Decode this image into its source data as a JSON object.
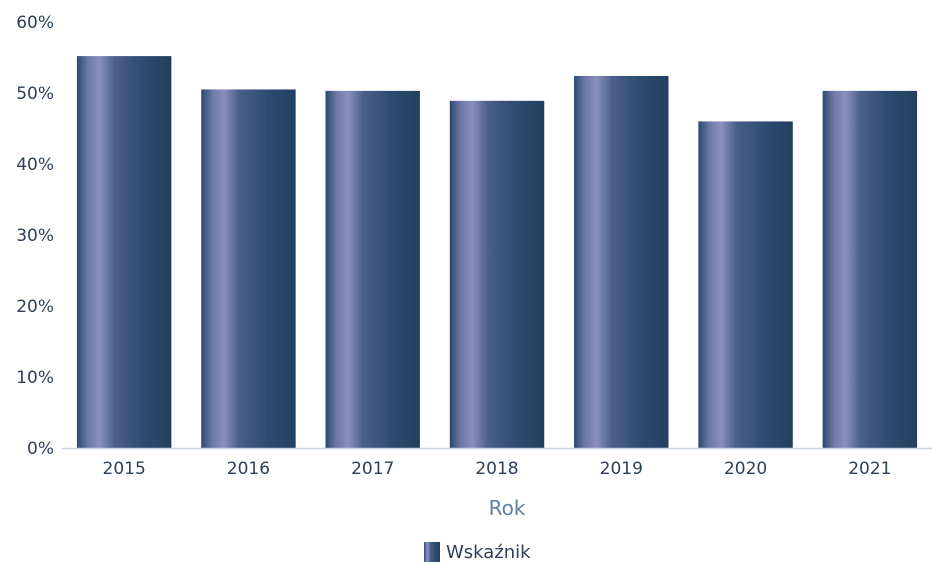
{
  "chart_data": {
    "type": "bar",
    "categories": [
      "2015",
      "2016",
      "2017",
      "2018",
      "2019",
      "2020",
      "2021"
    ],
    "series": [
      {
        "name": "Wskaźnik",
        "values": [
          55.2,
          50.5,
          50.3,
          48.9,
          52.4,
          46.0,
          50.3
        ]
      }
    ],
    "xlabel": "Rok",
    "ylabel": "",
    "ylim": [
      0,
      60
    ],
    "yticks": [
      "0%",
      "10%",
      "20%",
      "30%",
      "40%",
      "50%",
      "60%"
    ],
    "grid": false,
    "legend": "bottom-center",
    "colors": {
      "bar_dark": "#2b4a6e",
      "bar_light": "#7d84b4",
      "axis": "#c8d0dc",
      "text": "#2e3f58",
      "xlabel": "#5f7fa6"
    }
  }
}
